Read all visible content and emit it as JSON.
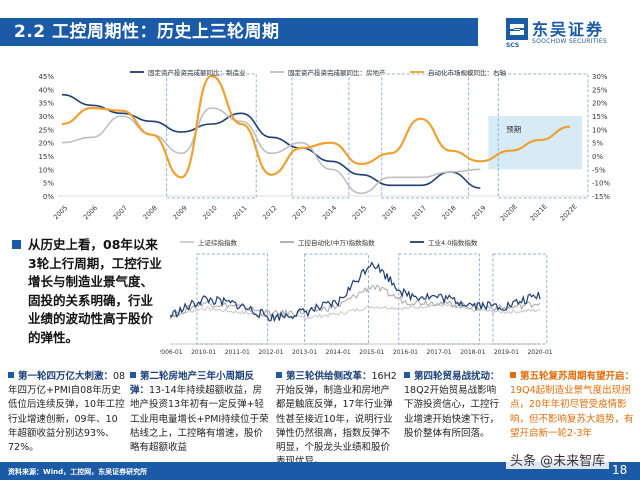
{
  "header": {
    "title": "2.2 工控周期性：历史上三轮周期",
    "logo_cn": "东吴证券",
    "logo_en": "SOOCHOW SECURITIES",
    "logo_abbr": "SCS",
    "brand_color": "#1b5aa6"
  },
  "summary": {
    "text": "从历史上看，08年以来3轮上行周期，工控行业增长与制造业景气度、固投的关系明确，行业业绩的波动性高于股价的弹性。"
  },
  "cards": [
    {
      "title": "第一轮四万亿大刺激：",
      "body": "08年四万亿+PMI自08年历史低位后连续反弹，10年工控行业增速创新，09年、10年超额收益分别达93%、72%。"
    },
    {
      "title": "第二轮房地产三年小周期反弹：",
      "body": "13-14年持续超额收益，房地产投资13年初有一定反弹+轻工业用电量增长+PMI持续位于荣枯线之上，工控略有增速，股价略有超额收益"
    },
    {
      "title": "第三轮供给侧改革：",
      "body": "16H2开始反弹，制造业和房地产都是触底反弹，17年行业弹性甚至接近10年，说明行业弹性仍然很高，指数反弹不明显，个股龙头业绩和股价表现优异。"
    },
    {
      "title": "第四轮贸易战扰动：",
      "body": "18Q2开始贸易战影响下游投资信心，工控行业增速开始快速下行，股价整体有所回落。"
    },
    {
      "title": "第五轮复苏周期有望开启：",
      "body": "19Q4起制造业景气度出现拐点，20年年初尽管受疫情影响，但不影响复苏大趋势，有望开启新一轮2-3年"
    }
  ],
  "top_chart": {
    "legend": [
      "固定资产投资完成额同比：制造业",
      "固定资产投资完成额同比：房地产",
      "自动化市场规模同比：右轴"
    ],
    "annotation": "预期",
    "colors": {
      "manufacturing": "#1f3d73",
      "realestate": "#bfbfbf",
      "automation": "#f0a030",
      "forecast_fill": "#d6ebf5",
      "box": "#8eb4e3"
    },
    "chart_data": {
      "type": "line",
      "categories": [
        "2005",
        "2006",
        "2007",
        "2008",
        "2009",
        "2010",
        "2011",
        "2012",
        "2013",
        "2014",
        "2015",
        "2016",
        "2017",
        "2018",
        "2019",
        "2020E",
        "2021E",
        "2022E"
      ],
      "y_left_ticks": [
        "0%",
        "5%",
        "10%",
        "15%",
        "20%",
        "25%",
        "30%",
        "35%",
        "40%",
        "45%"
      ],
      "y_right_ticks": [
        "-15%",
        "-10%",
        "-5%",
        "0%",
        "5%",
        "10%",
        "15%",
        "20%",
        "25%",
        "30%"
      ],
      "ylim_left": [
        0,
        45
      ],
      "ylim_right": [
        -15,
        30
      ],
      "series": [
        {
          "name": "固定资产投资完成额同比：制造业",
          "axis": "left",
          "values": [
            38,
            34,
            31,
            28,
            24,
            27,
            31,
            22,
            18,
            13,
            8,
            4,
            4,
            9,
            3,
            null,
            null,
            null
          ]
        },
        {
          "name": "固定资产投资完成额同比：房地产",
          "axis": "left",
          "values": [
            20,
            22,
            30,
            23,
            16,
            33,
            28,
            16,
            20,
            10,
            1,
            7,
            7,
            9,
            10,
            null,
            null,
            null
          ]
        },
        {
          "name": "自动化市场规模同比：右轴",
          "axis": "right",
          "values": [
            12,
            18,
            17,
            8,
            -8,
            30,
            12,
            -7,
            3,
            5,
            -3,
            1,
            14,
            2,
            -2,
            2,
            6,
            11
          ]
        }
      ]
    }
  },
  "mid_chart": {
    "legend": [
      "上证综指指数",
      "工控自动化(中万)指数指数",
      "工业4.0指数指数"
    ],
    "colors": {
      "sh": "#c8c8c8",
      "auto": "#a9a9a9",
      "industry": "#1f3d73"
    },
    "chart_data": {
      "type": "line",
      "categories": [
        "2006-01",
        "2010-01",
        "2011-01",
        "2012-01",
        "2013-01",
        "2014-01",
        "2015-01",
        "2016-01",
        "2017-01",
        "2018-01",
        "2019-01",
        "2020-01"
      ],
      "series": [
        {
          "name": "上证综指指数",
          "values": [
            30,
            38,
            34,
            30,
            28,
            32,
            40,
            38,
            42,
            36,
            34,
            36
          ]
        },
        {
          "name": "工控自动化(中万)指数指数",
          "values": [
            30,
            44,
            40,
            32,
            34,
            40,
            62,
            45,
            44,
            40,
            38,
            44
          ]
        },
        {
          "name": "工业4.0指数指数",
          "values": [
            30,
            48,
            42,
            28,
            34,
            44,
            88,
            52,
            50,
            42,
            40,
            52
          ]
        }
      ]
    }
  },
  "footer": {
    "source": "资料来源：Wind，工控网，东吴证券研究所",
    "page": "18",
    "watermark": "头条 @未来智库"
  }
}
